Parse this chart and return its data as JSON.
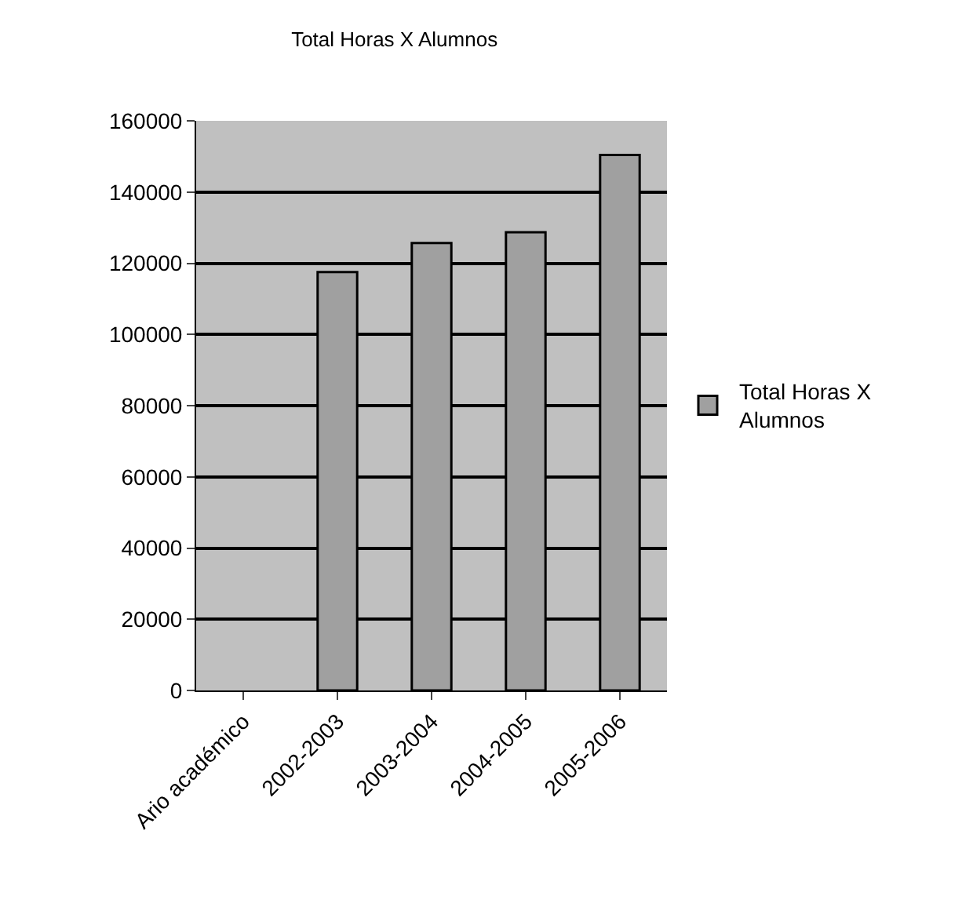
{
  "chart_data": {
    "type": "bar",
    "title": "Total Horas X Alumnos",
    "categories": [
      "Ario académico",
      "2002-2003",
      "2003-2004",
      "2004-2005",
      "2005-2006"
    ],
    "series": [
      {
        "name": "Total Horas X Alumnos",
        "color": "#a0a0a0",
        "values": [
          null,
          117500,
          125700,
          128700,
          150400
        ]
      }
    ],
    "ylim": [
      0,
      160000
    ],
    "yticks": [
      0,
      20000,
      40000,
      60000,
      80000,
      100000,
      120000,
      140000,
      160000
    ],
    "grid": "y",
    "legend": "right"
  }
}
